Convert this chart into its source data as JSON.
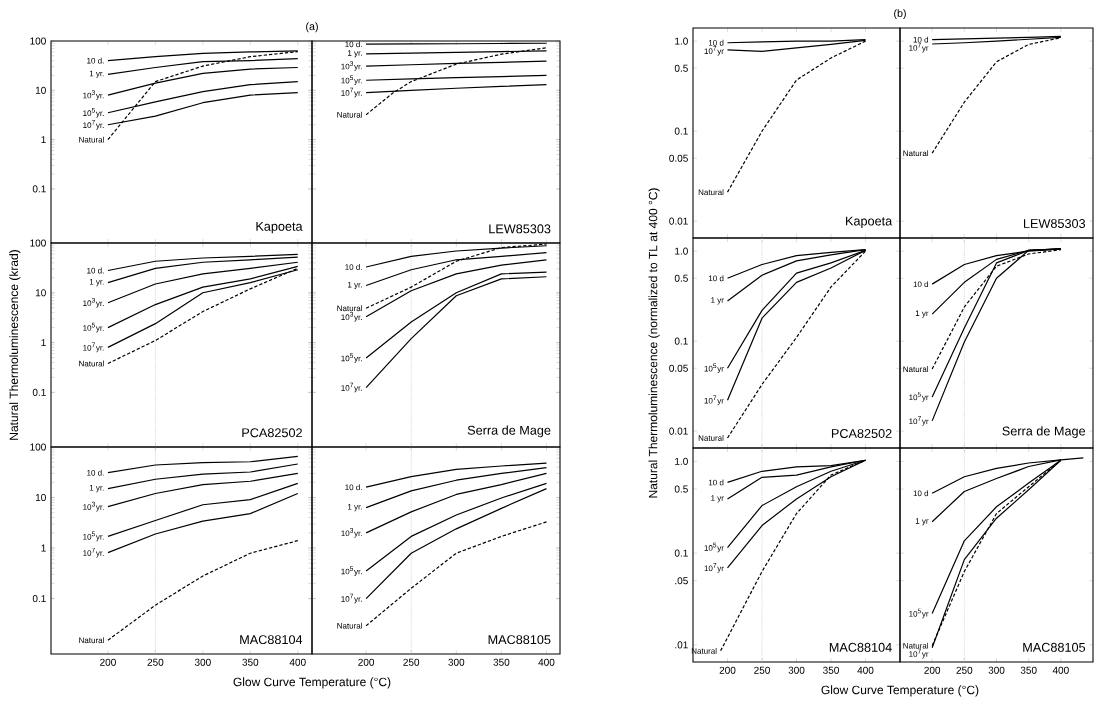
{
  "chart_data": [
    {
      "type": "line",
      "title": "Kapoeta",
      "annotations": [
        "(a)"
      ],
      "log": "y",
      "tick_labels": "y",
      "xlim": [
        140,
        415
      ],
      "ylim": [
        0.008,
        100
      ],
      "xticks": [
        200,
        250,
        300,
        350,
        400
      ],
      "yticks": [
        0.1,
        1,
        10,
        100
      ],
      "x": [
        200,
        250,
        300,
        350,
        400
      ],
      "series": [
        {
          "name": "10 d.",
          "color": "#000000",
          "values": [
            40,
            48,
            56,
            60,
            63
          ]
        },
        {
          "name": "1 yr.",
          "color": "#000000",
          "values": [
            21,
            29,
            38,
            40,
            44
          ]
        },
        {
          "name": "10$^{3}$yr.",
          "color": "#000000",
          "values": [
            8,
            14,
            22,
            27,
            29
          ]
        },
        {
          "name": "10$^{5}$yr.",
          "color": "#000000",
          "values": [
            3.5,
            5.8,
            9.4,
            13,
            15
          ]
        },
        {
          "name": "10$^{7}$yr.",
          "color": "#000000",
          "values": [
            2,
            3,
            5.6,
            8,
            9
          ]
        },
        {
          "name": "Natural",
          "color": "#000000",
          "line_style": "dashed",
          "values": [
            1,
            15,
            31,
            48,
            61
          ]
        }
      ]
    },
    {
      "type": "line",
      "title": "LEW85303",
      "log": "y",
      "tick_labels": false,
      "xlim": [
        140,
        415
      ],
      "ylim": [
        0.008,
        100
      ],
      "xticks": [
        200,
        250,
        300,
        350,
        400
      ],
      "yticks": [
        0.1,
        1,
        10,
        100
      ],
      "x": [
        200,
        250,
        300,
        350,
        400
      ],
      "series": [
        {
          "name": "10 d.",
          "color": "#000000",
          "values": [
            86,
            87,
            88,
            89,
            90
          ]
        },
        {
          "name": "1 yr.",
          "color": "#000000",
          "values": [
            55,
            57,
            59,
            61,
            63
          ]
        },
        {
          "name": "10$^{3}$yr.",
          "color": "#000000",
          "values": [
            31,
            33,
            35,
            37,
            39
          ]
        },
        {
          "name": "10$^{5}$yr.",
          "color": "#000000",
          "values": [
            16,
            17,
            18,
            19,
            20
          ]
        },
        {
          "name": "10$^{7}$yr.",
          "color": "#000000",
          "values": [
            9,
            10,
            11,
            12,
            13
          ]
        },
        {
          "name": "Natural",
          "color": "#000000",
          "line_style": "dashed",
          "x": [
            200,
            230,
            250,
            300,
            350,
            400
          ],
          "values": [
            3.2,
            8.9,
            15,
            34,
            54,
            73
          ]
        }
      ]
    },
    {
      "type": "line",
      "title": "PCA82502",
      "ylabel": "Natural Thermoluminescence (krad)",
      "log": "y",
      "tick_labels": "y",
      "xlim": [
        140,
        415
      ],
      "ylim": [
        0.008,
        100
      ],
      "xticks": [
        200,
        250,
        300,
        350,
        400
      ],
      "yticks": [
        0.1,
        1,
        10,
        100
      ],
      "x": [
        200,
        250,
        300,
        350,
        400
      ],
      "ref_lines": [
        {
          "axis": "x",
          "value": 250,
          "color": "#bbbbbb",
          "line_style": "dotted"
        }
      ],
      "series": [
        {
          "name": "10 d.",
          "color": "#000000",
          "values": [
            28,
            43,
            50,
            54,
            59
          ]
        },
        {
          "name": "1 yr.",
          "color": "#000000",
          "values": [
            16,
            31,
            41,
            46,
            52
          ]
        },
        {
          "name": "10$^{3}$yr.",
          "color": "#000000",
          "values": [
            6.3,
            15,
            24,
            31,
            41
          ]
        },
        {
          "name": "10$^{5}$yr.",
          "color": "#000000",
          "values": [
            2,
            5.8,
            13,
            19,
            34
          ]
        },
        {
          "name": "10$^{7}$yr.",
          "color": "#000000",
          "values": [
            0.8,
            2.4,
            10,
            16,
            29
          ]
        },
        {
          "name": "Natural",
          "color": "#000000",
          "line_style": "dashed",
          "values": [
            0.38,
            1.1,
            4.2,
            12,
            31
          ]
        }
      ]
    },
    {
      "type": "line",
      "title": "Serra de Mage",
      "log": "y",
      "tick_labels": false,
      "xlim": [
        140,
        415
      ],
      "ylim": [
        0.008,
        100
      ],
      "xticks": [
        200,
        250,
        300,
        350,
        400
      ],
      "yticks": [
        0.1,
        1,
        10,
        100
      ],
      "x": [
        200,
        250,
        300,
        350,
        400
      ],
      "ref_lines": [
        {
          "axis": "x",
          "value": 250,
          "color": "#bbbbbb",
          "line_style": "dotted"
        }
      ],
      "series": [
        {
          "name": "10 d.",
          "color": "#000000",
          "values": [
            33,
            54,
            69,
            79,
            88
          ]
        },
        {
          "name": "1 yr.",
          "color": "#000000",
          "values": [
            14,
            29,
            46,
            54,
            64
          ]
        },
        {
          "name": "10$^{3}$yr.",
          "color": "#000000",
          "values": [
            3.3,
            11,
            24,
            36,
            46
          ]
        },
        {
          "name": "10$^{5}$yr.",
          "color": "#000000",
          "values": [
            0.49,
            2.6,
            10,
            24,
            26
          ]
        },
        {
          "name": "10$^{7}$yr.",
          "color": "#000000",
          "values": [
            0.125,
            1.2,
            8.7,
            19,
            21
          ]
        },
        {
          "name": "Natural",
          "color": "#000000",
          "line_style": "dashed",
          "values": [
            4.9,
            13,
            43,
            81,
            95
          ]
        }
      ]
    },
    {
      "type": "line",
      "title": "MAC88104",
      "xlabel": "Glow Curve Temperature (°C)",
      "log": "y",
      "xlim": [
        140,
        415
      ],
      "ylim": [
        0.008,
        100
      ],
      "xticks": [
        200,
        250,
        300,
        350,
        400
      ],
      "yticks": [
        0.1,
        1,
        10,
        100
      ],
      "x": [
        200,
        250,
        300,
        350,
        400
      ],
      "ref_lines": [
        {
          "axis": "x",
          "value": 250,
          "color": "#bbbbbb",
          "line_style": "dotted"
        }
      ],
      "series": [
        {
          "name": "10 d.",
          "color": "#000000",
          "values": [
            31,
            44,
            49,
            51,
            65
          ]
        },
        {
          "name": "1 yr.",
          "color": "#000000",
          "values": [
            15,
            23,
            29,
            32,
            46
          ]
        },
        {
          "name": "10$^{3}$yr.",
          "color": "#000000",
          "values": [
            6.6,
            12,
            18,
            21,
            30
          ]
        },
        {
          "name": "10$^{5}$yr.",
          "color": "#000000",
          "values": [
            1.7,
            3.5,
            7.2,
            9.1,
            19
          ]
        },
        {
          "name": "10$^{7}$yr.",
          "color": "#000000",
          "values": [
            0.81,
            1.9,
            3.4,
            4.8,
            12
          ]
        },
        {
          "name": "Natural",
          "color": "#000000",
          "line_style": "dashed",
          "values": [
            0.015,
            0.074,
            0.28,
            0.79,
            1.4
          ]
        }
      ]
    },
    {
      "type": "line",
      "title": "MAC88105",
      "log": "y",
      "tick_labels": "x",
      "xlim": [
        140,
        415
      ],
      "ylim": [
        0.008,
        100
      ],
      "xticks": [
        200,
        250,
        300,
        350,
        400
      ],
      "yticks": [
        0.1,
        1,
        10,
        100
      ],
      "x": [
        200,
        250,
        300,
        350,
        400
      ],
      "ref_lines": [
        {
          "axis": "x",
          "value": 250,
          "color": "#bbbbbb",
          "line_style": "dotted"
        }
      ],
      "series": [
        {
          "name": "10 d.",
          "color": "#000000",
          "values": [
            16,
            26,
            36,
            42,
            48
          ]
        },
        {
          "name": "1 yr.",
          "color": "#000000",
          "values": [
            6.3,
            13.5,
            22,
            30,
            39
          ]
        },
        {
          "name": "10$^{3}$yr.",
          "color": "#000000",
          "values": [
            2,
            5.2,
            11.5,
            18,
            30
          ]
        },
        {
          "name": "10$^{5}$yr.",
          "color": "#000000",
          "values": [
            0.35,
            1.7,
            4.5,
            9.8,
            19
          ]
        },
        {
          "name": "10$^{7}$yr.",
          "color": "#000000",
          "values": [
            0.1,
            0.79,
            2.4,
            6.1,
            15
          ]
        },
        {
          "name": "Natural",
          "color": "#000000",
          "line_style": "dashed",
          "values": [
            0.029,
            0.16,
            0.79,
            1.7,
            3.3
          ]
        }
      ]
    },
    {
      "type": "line",
      "title": "Kapoeta",
      "annotations": [
        "(b)"
      ],
      "log": "y",
      "tick_labels": "y",
      "xlim": [
        150,
        450
      ],
      "ylim": [
        0.0065,
        1.4
      ],
      "xticks": [
        200,
        250,
        300,
        350,
        400
      ],
      "yticks": [
        {
          "value": 1,
          "label": "1.0"
        },
        {
          "value": 0.5,
          "label": "0.5"
        },
        {
          "value": 0.1,
          "label": "0.1"
        },
        {
          "value": 0.05,
          "label": "0.05"
        },
        {
          "value": 0.01,
          "label": "0.01"
        }
      ],
      "x": [
        200,
        250,
        300,
        350,
        400
      ],
      "series": [
        {
          "name": "10 d",
          "color": "#000000",
          "values": [
            0.96,
            0.98,
            1.0,
            1.0,
            1.04
          ]
        },
        {
          "name": "10$^{7}$yr",
          "color": "#000000",
          "values": [
            0.8,
            0.77,
            0.84,
            0.92,
            1.02
          ]
        },
        {
          "name": "Natural",
          "color": "#000000",
          "line_style": "dashed",
          "values": [
            0.021,
            0.1,
            0.37,
            0.65,
            1.0
          ]
        }
      ]
    },
    {
      "type": "line",
      "title": "LEW85303",
      "log": "y",
      "tick_labels": false,
      "xlim": [
        150,
        450
      ],
      "ylim": [
        0.0065,
        1.4
      ],
      "xticks": [
        200,
        250,
        300,
        350,
        400
      ],
      "yticks": [
        {
          "value": 1,
          "label": null
        },
        {
          "value": 0.5,
          "label": null
        },
        {
          "value": 0.1,
          "label": null
        },
        {
          "value": 0.05,
          "label": null
        },
        {
          "value": 0.01,
          "label": null
        }
      ],
      "x": [
        200,
        250,
        300,
        350,
        400
      ],
      "series": [
        {
          "name": "10 d",
          "color": "#000000",
          "values": [
            1.04,
            1.06,
            1.08,
            1.1,
            1.13
          ]
        },
        {
          "name": "10$^{7}$yr",
          "color": "#000000",
          "values": [
            0.93,
            0.96,
            1.0,
            1.05,
            1.1
          ]
        },
        {
          "name": "Natural",
          "color": "#000000",
          "line_style": "dashed",
          "values": [
            0.057,
            0.21,
            0.59,
            0.92,
            1.09
          ]
        }
      ]
    },
    {
      "type": "line",
      "title": "PCA82502",
      "ylabel": "Natural Thermoluminescence (normalized to TL at 400 °C)",
      "log": "y",
      "tick_labels": "y",
      "xlim": [
        150,
        450
      ],
      "ylim": [
        0.0065,
        1.4
      ],
      "xticks": [
        200,
        250,
        300,
        350,
        400
      ],
      "yticks": [
        {
          "value": 1,
          "label": "1.0"
        },
        {
          "value": 0.5,
          "label": "0.5"
        },
        {
          "value": 0.1,
          "label": "0.1"
        },
        {
          "value": 0.05,
          "label": "0.05"
        },
        {
          "value": 0.01,
          "label": "0.01"
        }
      ],
      "x": [
        200,
        250,
        300,
        350,
        400
      ],
      "ref_lines": [
        {
          "axis": "x",
          "value": 250,
          "color": "#bbbbbb",
          "line_style": "dotted"
        }
      ],
      "series": [
        {
          "name": "10 d",
          "color": "#000000",
          "values": [
            0.5,
            0.71,
            0.89,
            0.97,
            1.04
          ]
        },
        {
          "name": "1 yr",
          "color": "#000000",
          "values": [
            0.28,
            0.54,
            0.78,
            0.91,
            1.04
          ]
        },
        {
          "name": "10$^{5}$yr",
          "color": "#000000",
          "values": [
            0.05,
            0.22,
            0.57,
            0.74,
            1.02
          ]
        },
        {
          "name": "10$^{7}$yr",
          "color": "#000000",
          "values": [
            0.022,
            0.18,
            0.45,
            0.65,
            1.02
          ]
        },
        {
          "name": "Natural",
          "color": "#000000",
          "line_style": "dashed",
          "values": [
            0.0084,
            0.033,
            0.11,
            0.4,
            1.0
          ]
        }
      ]
    },
    {
      "type": "line",
      "title": "Serra de Mage",
      "log": "y",
      "tick_labels": false,
      "xlim": [
        150,
        450
      ],
      "ylim": [
        0.0065,
        1.4
      ],
      "xticks": [
        200,
        250,
        300,
        350,
        400
      ],
      "yticks": [
        {
          "value": 1,
          "label": null
        },
        {
          "value": 0.5,
          "label": null
        },
        {
          "value": 0.1,
          "label": null
        },
        {
          "value": 0.05,
          "label": null
        },
        {
          "value": 0.01,
          "label": null
        }
      ],
      "x": [
        200,
        250,
        300,
        350,
        400
      ],
      "ref_lines": [
        {
          "axis": "x",
          "value": 250,
          "color": "#bbbbbb",
          "line_style": "dotted"
        }
      ],
      "series": [
        {
          "name": "10 d",
          "color": "#000000",
          "values": [
            0.43,
            0.71,
            0.89,
            1.0,
            1.06
          ]
        },
        {
          "name": "1 yr",
          "color": "#000000",
          "values": [
            0.2,
            0.45,
            0.81,
            1.02,
            1.06
          ]
        },
        {
          "name": "Natural",
          "color": "#000000",
          "line_style": "dashed",
          "values": [
            0.049,
            0.24,
            0.68,
            0.93,
            1.04
          ]
        },
        {
          "name": "10$^{5}$yr",
          "color": "#000000",
          "values": [
            0.024,
            0.14,
            0.74,
            1.02,
            1.06
          ]
        },
        {
          "name": "10$^{7}$yr",
          "color": "#000000",
          "values": [
            0.013,
            0.098,
            0.5,
            1.02,
            1.06
          ]
        }
      ]
    },
    {
      "type": "line",
      "title": "MAC88104",
      "xlabel": "Glow Curve Temperature (°C)",
      "log": "y",
      "xlim": [
        150,
        450
      ],
      "ylim": [
        0.0065,
        1.4
      ],
      "xticks": [
        200,
        250,
        300,
        350,
        400
      ],
      "yticks": [
        {
          "value": 1,
          "label": "1.0"
        },
        {
          "value": 0.5,
          "label": "0.5"
        },
        {
          "value": 0.1,
          "label": "0.1"
        },
        {
          "value": 0.05,
          "label": ".05"
        },
        {
          "value": 0.01,
          "label": ".01"
        }
      ],
      "x": [
        200,
        250,
        300,
        350,
        400
      ],
      "ref_lines": [
        {
          "axis": "x",
          "value": 250,
          "color": "#bbbbbb",
          "line_style": "dotted"
        }
      ],
      "series": [
        {
          "name": "10 d",
          "color": "#000000",
          "values": [
            0.59,
            0.78,
            0.87,
            0.9,
            1.03
          ]
        },
        {
          "name": "1 yr",
          "color": "#000000",
          "values": [
            0.39,
            0.67,
            0.71,
            0.87,
            1.03
          ]
        },
        {
          "name": "10$^{5}$yr",
          "color": "#000000",
          "values": [
            0.115,
            0.33,
            0.53,
            0.78,
            1.03
          ]
        },
        {
          "name": "10$^{7}$yr",
          "color": "#000000",
          "values": [
            0.069,
            0.2,
            0.39,
            0.68,
            1.03
          ]
        },
        {
          "name": "Natural",
          "color": "#000000",
          "line_style": "dashed",
          "x": [
            190,
            250,
            300,
            350,
            400
          ],
          "values": [
            0.0086,
            0.063,
            0.27,
            0.71,
            1.03
          ]
        }
      ]
    },
    {
      "type": "line",
      "title": "MAC88105",
      "log": "y",
      "tick_labels": "x",
      "xlim": [
        150,
        450
      ],
      "ylim": [
        0.0065,
        1.4
      ],
      "xticks": [
        200,
        250,
        300,
        350,
        400
      ],
      "yticks": [
        {
          "value": 1,
          "label": null
        },
        {
          "value": 0.5,
          "label": null
        },
        {
          "value": 0.1,
          "label": null
        },
        {
          "value": 0.05,
          "label": null
        },
        {
          "value": 0.01,
          "label": null
        }
      ],
      "x": [
        200,
        250,
        300,
        350,
        400
      ],
      "ref_lines": [
        {
          "axis": "x",
          "value": 250,
          "color": "#bbbbbb",
          "line_style": "dotted"
        }
      ],
      "series": [
        {
          "name": "10 d",
          "color": "#000000",
          "x": [
            200,
            250,
            300,
            350,
            400,
            435
          ],
          "values": [
            0.45,
            0.68,
            0.84,
            0.96,
            1.04,
            1.09
          ]
        },
        {
          "name": "1 yr",
          "color": "#000000",
          "values": [
            0.22,
            0.47,
            0.65,
            0.88,
            1.04
          ]
        },
        {
          "name": "10$^{5}$yr",
          "color": "#000000",
          "values": [
            0.022,
            0.136,
            0.32,
            0.58,
            1.03
          ]
        },
        {
          "name": "10$^{7}$yr",
          "color": "#000000",
          "values": [
            0.0093,
            0.085,
            0.24,
            0.49,
            1.03
          ]
        },
        {
          "name": "Natural",
          "color": "#000000",
          "line_style": "dashed",
          "values": [
            0.0098,
            0.063,
            0.27,
            0.53,
            1.03
          ]
        }
      ]
    }
  ]
}
